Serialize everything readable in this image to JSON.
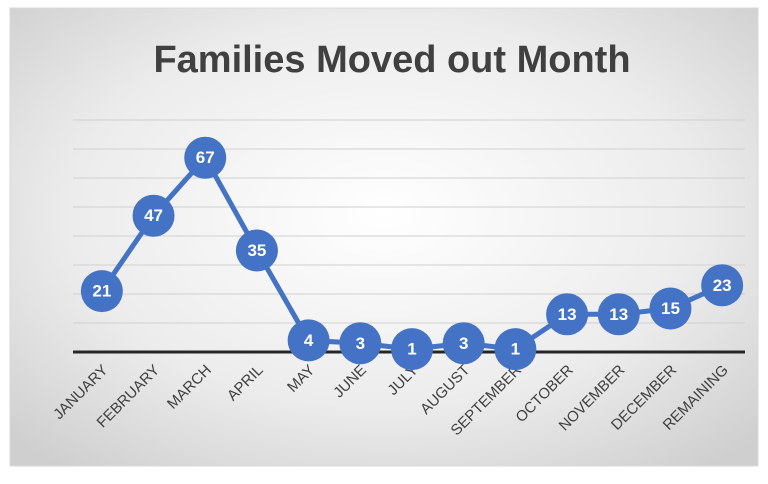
{
  "chart_data": {
    "type": "line",
    "title": "Families Moved out Month",
    "categories": [
      "JANUARY",
      "FEBRUARY",
      "MARCH",
      "APRIL",
      "MAY",
      "JUNE",
      "JULY",
      "AUGUST",
      "SEPTEMBER",
      "OCTOBER",
      "NOVEMBER",
      "DECEMBER",
      "REMAINING"
    ],
    "series": [
      {
        "name": "Families Moved out",
        "color": "#4472c4",
        "values": [
          21,
          47,
          67,
          35,
          4,
          3,
          1,
          3,
          1,
          13,
          13,
          15,
          23
        ]
      }
    ],
    "ylim": [
      0,
      80
    ],
    "yticks": [
      0,
      10,
      20,
      30,
      40,
      50,
      60,
      70,
      80
    ],
    "grid": true
  }
}
